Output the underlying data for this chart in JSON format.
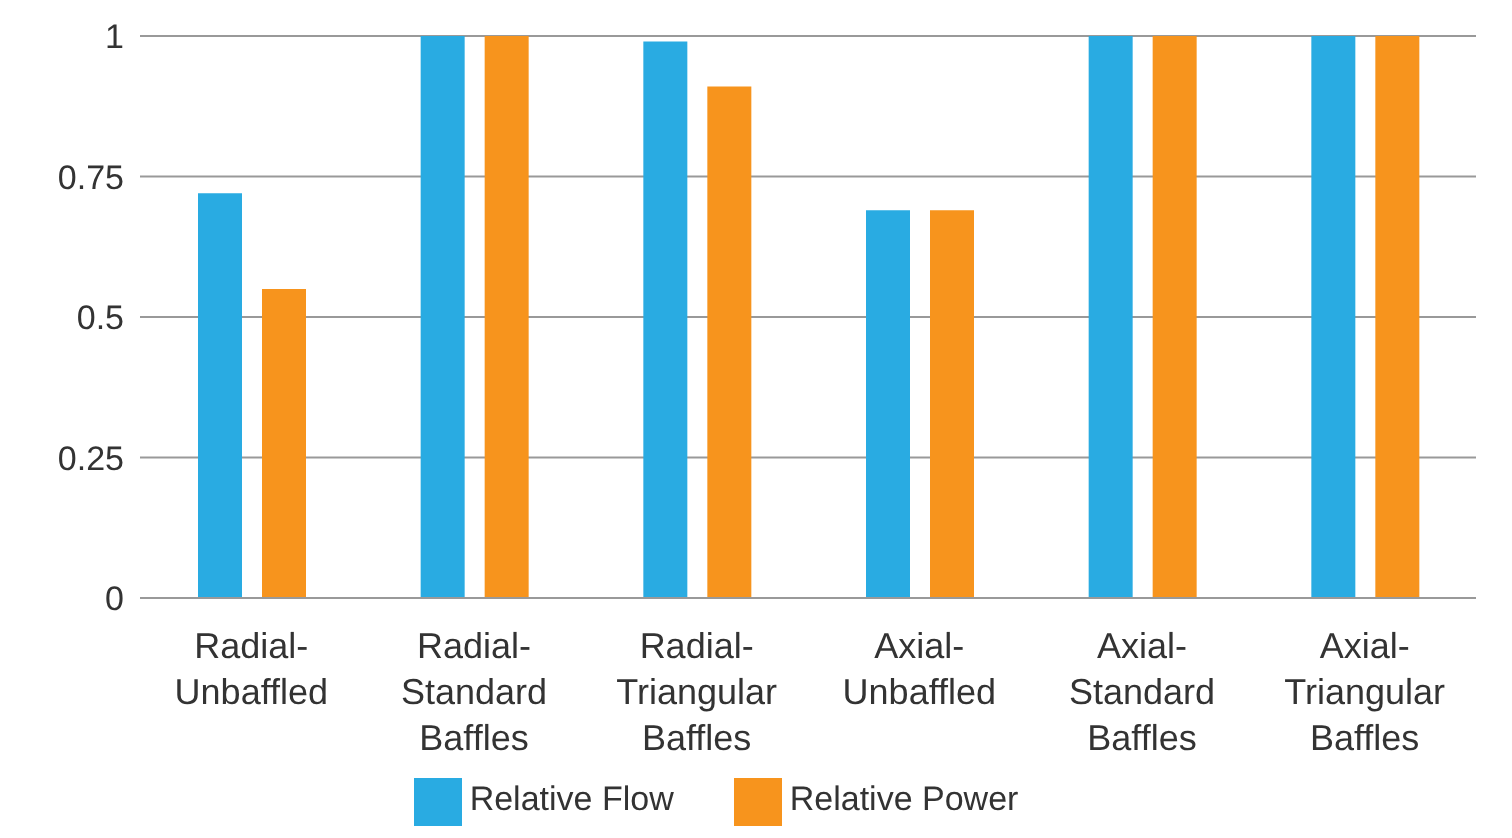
{
  "chart_data": {
    "type": "bar",
    "categories": [
      "Radial-Unbaffled",
      "Radial-Standard Baffles",
      "Radial-Triangular Baffles",
      "Axial-Unbaffled",
      "Axial-Standard Baffles",
      "Axial-Triangular Baffles"
    ],
    "series": [
      {
        "name": "Relative Flow",
        "color": "#29abe2",
        "values": [
          0.72,
          1,
          0.99,
          0.69,
          1,
          1
        ]
      },
      {
        "name": "Relative Power",
        "color": "#f7941d",
        "values": [
          0.55,
          1,
          0.91,
          0.69,
          1,
          1
        ]
      }
    ],
    "ylim": [
      0,
      1
    ],
    "yticks": [
      0,
      0.25,
      0.5,
      0.75,
      1
    ],
    "grid": "y",
    "legend": "bottom"
  }
}
